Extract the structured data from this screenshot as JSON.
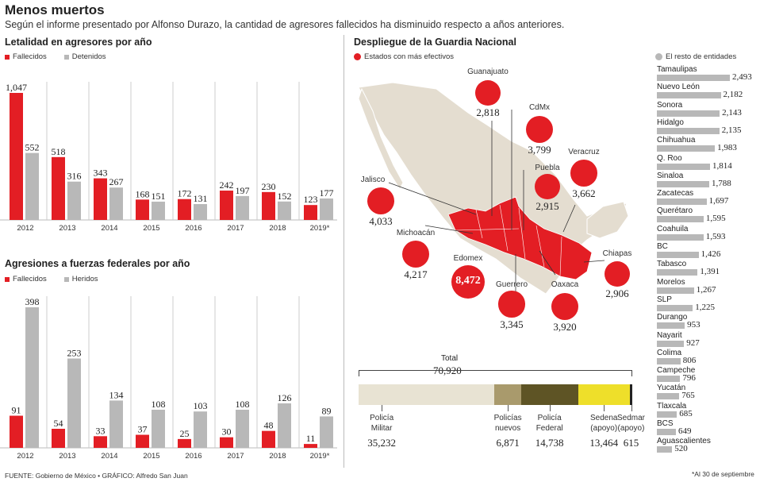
{
  "header": {
    "title": "Menos muertos",
    "subtitle": "Según el informe presentado por Alfonso Durazo, la cantidad de agresores fallecidos ha disminuido respecto a años anteriores."
  },
  "colors": {
    "red": "#e31e24",
    "gray": "#b8b8b8",
    "map_land": "#e4ddd0"
  },
  "chart_data": [
    {
      "type": "bar",
      "title": "Letalidad en agresores por año",
      "categories": [
        "2012",
        "2013",
        "2014",
        "2015",
        "2016",
        "2017",
        "2018",
        "2019*"
      ],
      "series": [
        {
          "name": "Fallecidos",
          "values": [
            1047,
            518,
            343,
            168,
            172,
            242,
            230,
            123
          ],
          "labels": [
            "1,047",
            "518",
            "343",
            "168",
            "172",
            "242",
            "230",
            "123"
          ]
        },
        {
          "name": "Detenidos",
          "values": [
            552,
            316,
            267,
            151,
            131,
            197,
            152,
            177
          ],
          "labels": [
            "552",
            "316",
            "267",
            "151",
            "131",
            "197",
            "152",
            "177"
          ]
        }
      ]
    },
    {
      "type": "bar",
      "title": "Agresiones a fuerzas federales por año",
      "categories": [
        "2012",
        "2013",
        "2014",
        "2015",
        "2016",
        "2017",
        "2018",
        "2019*"
      ],
      "series": [
        {
          "name": "Fallecidos",
          "values": [
            91,
            54,
            33,
            37,
            25,
            30,
            48,
            11
          ],
          "labels": [
            "91",
            "54",
            "33",
            "37",
            "25",
            "30",
            "48",
            "11"
          ]
        },
        {
          "name": "Heridos",
          "values": [
            398,
            253,
            134,
            108,
            103,
            108,
            126,
            89
          ],
          "labels": [
            "398",
            "253",
            "134",
            "108",
            "103",
            "108",
            "126",
            "89"
          ]
        }
      ]
    },
    {
      "type": "bar",
      "title": "Despliegue de la Guardia Nacional",
      "legend_red": "Estados con más efectivos",
      "legend_gray": "El resto de entidades",
      "states_top": [
        {
          "name": "Guanajuato",
          "value": 2818,
          "label": "2,818"
        },
        {
          "name": "CdMx",
          "value": 3799,
          "label": "3,799"
        },
        {
          "name": "Veracruz",
          "value": 3662,
          "label": "3,662"
        },
        {
          "name": "Puebla",
          "value": 2915,
          "label": "2,915"
        },
        {
          "name": "Jalisco",
          "value": 4033,
          "label": "4,033"
        },
        {
          "name": "Michoacán",
          "value": 4217,
          "label": "4,217"
        },
        {
          "name": "Edomex",
          "value": 8472,
          "label": "8,472"
        },
        {
          "name": "Guerrero",
          "value": 3345,
          "label": "3,345"
        },
        {
          "name": "Oaxaca",
          "value": 3920,
          "label": "3,920"
        },
        {
          "name": "Chiapas",
          "value": 2906,
          "label": "2,906"
        }
      ],
      "states_rest": [
        {
          "name": "Tamaulipas",
          "value": 2493,
          "label": "2,493"
        },
        {
          "name": "Nuevo León",
          "value": 2182,
          "label": "2,182"
        },
        {
          "name": "Sonora",
          "value": 2143,
          "label": "2,143"
        },
        {
          "name": "Hidalgo",
          "value": 2135,
          "label": "2,135"
        },
        {
          "name": "Chihuahua",
          "value": 1983,
          "label": "1,983"
        },
        {
          "name": "Q. Roo",
          "value": 1814,
          "label": "1,814"
        },
        {
          "name": "Sinaloa",
          "value": 1788,
          "label": "1,788"
        },
        {
          "name": "Zacatecas",
          "value": 1697,
          "label": "1,697"
        },
        {
          "name": "Querétaro",
          "value": 1595,
          "label": "1,595"
        },
        {
          "name": "Coahuila",
          "value": 1593,
          "label": "1,593"
        },
        {
          "name": "BC",
          "value": 1426,
          "label": "1,426"
        },
        {
          "name": "Tabasco",
          "value": 1391,
          "label": "1,391"
        },
        {
          "name": "Morelos",
          "value": 1267,
          "label": "1,267"
        },
        {
          "name": "SLP",
          "value": 1225,
          "label": "1,225"
        },
        {
          "name": "Durango",
          "value": 953,
          "label": "953"
        },
        {
          "name": "Nayarit",
          "value": 927,
          "label": "927"
        },
        {
          "name": "Colima",
          "value": 806,
          "label": "806"
        },
        {
          "name": "Campeche",
          "value": 796,
          "label": "796"
        },
        {
          "name": "Yucatán",
          "value": 765,
          "label": "765"
        },
        {
          "name": "Tlaxcala",
          "value": 685,
          "label": "685"
        },
        {
          "name": "BCS",
          "value": 649,
          "label": "649"
        },
        {
          "name": "Aguascalientes",
          "value": 520,
          "label": "520"
        }
      ]
    },
    {
      "type": "bar",
      "total_label": "Total",
      "total_value": "70,920",
      "segments": [
        {
          "name": "Policía Militar",
          "value": 35232,
          "label": "35,232",
          "color": "#e8e3d3"
        },
        {
          "name": "Policías nuevos",
          "value": 6871,
          "label": "6,871",
          "color": "#a99a6c"
        },
        {
          "name": "Policía Federal",
          "value": 14738,
          "label": "14,738",
          "color": "#5e5425"
        },
        {
          "name": "Sedena (apoyo)",
          "value": 13464,
          "label": "13,464",
          "color": "#eedf2a"
        },
        {
          "name": "Sedmar (apoyo)",
          "value": 615,
          "label": "615",
          "color": "#222222"
        }
      ]
    }
  ],
  "footer": {
    "source": "FUENTE: Gobierno de México • GRÁFICO: Alfredo San Juan",
    "note": "*Al 30 de septiembre"
  }
}
